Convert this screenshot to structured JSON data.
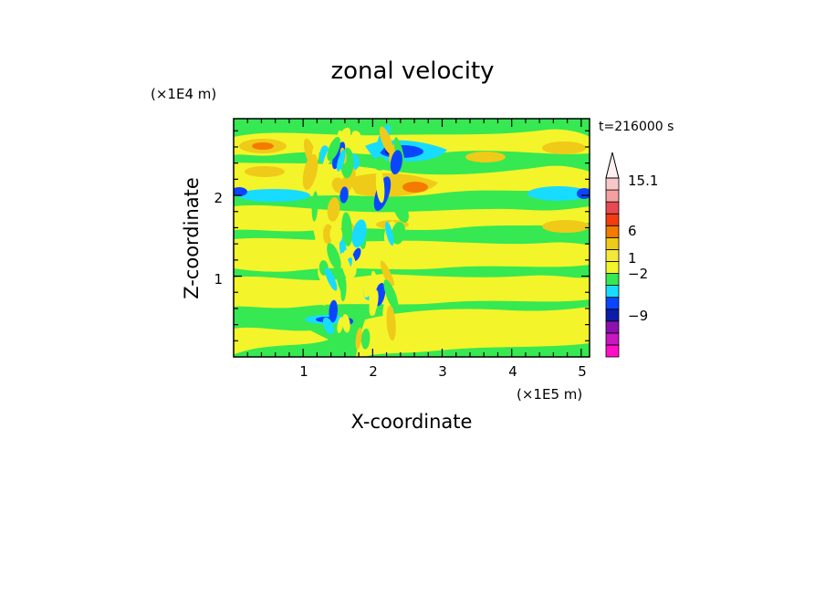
{
  "chart_data": {
    "type": "heatmap",
    "title": "zonal velocity",
    "subtitle": "t=216000 s",
    "xlabel": "X-coordinate",
    "ylabel": "Z-coordinate",
    "x_scale_label": "(×1E5 m)",
    "y_scale_label": "(×1E4 m)",
    "xlim": [
      0,
      5.12
    ],
    "ylim": [
      0,
      2.95
    ],
    "x_ticks": [
      "1",
      "2",
      "3",
      "4",
      "5"
    ],
    "x_tick_values": [
      1,
      2,
      3,
      4,
      5
    ],
    "y_ticks": [
      "1",
      "2"
    ],
    "y_tick_values": [
      1,
      2
    ],
    "colorbar": {
      "colors": [
        "#ff10c8",
        "#c818c0",
        "#8c10b0",
        "#0c1ca8",
        "#0a46ff",
        "#18dcff",
        "#36e852",
        "#f4f42a",
        "#f4e83a",
        "#f0ca18",
        "#f47a00",
        "#f43c10",
        "#e84a52",
        "#f4a0a0",
        "#f8c8c8"
      ],
      "labels": [
        "15.1",
        "6",
        "1",
        "−2",
        "−9"
      ],
      "label_value_index": [
        14,
        11,
        8,
        5,
        2
      ],
      "extend_top": true
    },
    "background_color": "#36e852"
  }
}
